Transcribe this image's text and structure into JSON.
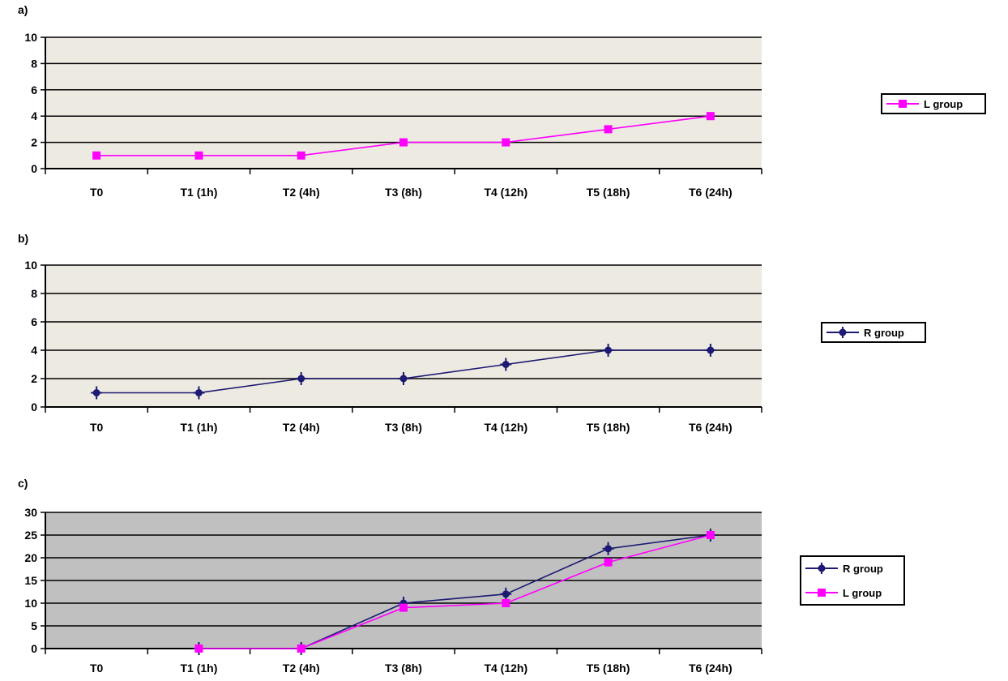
{
  "chart_data": [
    {
      "type": "line",
      "panel_label": "a)",
      "categories": [
        "T0",
        "T1 (1h)",
        "T2 (4h)",
        "T3 (8h)",
        "T4 (12h)",
        "T5 (18h)",
        "T6 (24h)"
      ],
      "yticks": [
        "0",
        "2",
        "4",
        "6",
        "8",
        "10"
      ],
      "ylim": [
        0,
        10
      ],
      "plot_bg": "#edeae1",
      "grid": true,
      "legend_position": "right",
      "series": [
        {
          "name": "L group",
          "color": "#ff00ff",
          "marker": "square",
          "values": [
            1,
            1,
            1,
            2,
            2,
            3,
            4
          ]
        }
      ]
    },
    {
      "type": "line",
      "panel_label": "b)",
      "categories": [
        "T0",
        "T1 (1h)",
        "T2 (4h)",
        "T3 (8h)",
        "T4 (12h)",
        "T5 (18h)",
        "T6 (24h)"
      ],
      "yticks": [
        "0",
        "2",
        "4",
        "6",
        "8",
        "10"
      ],
      "ylim": [
        0,
        10
      ],
      "plot_bg": "#edeae1",
      "grid": true,
      "legend_position": "right",
      "series": [
        {
          "name": "R group",
          "color": "#1c1a73",
          "marker": "star",
          "values": [
            1,
            1,
            2,
            2,
            3,
            4,
            4
          ]
        }
      ]
    },
    {
      "type": "line",
      "panel_label": "c)",
      "categories": [
        "T0",
        "T1 (1h)",
        "T2 (4h)",
        "T3 (8h)",
        "T4 (12h)",
        "T5 (18h)",
        "T6 (24h)"
      ],
      "yticks": [
        "0",
        "5",
        "10",
        "15",
        "20",
        "25",
        "30"
      ],
      "ylim": [
        0,
        30
      ],
      "plot_bg": "#c0c0c0",
      "grid": true,
      "legend_position": "right",
      "series": [
        {
          "name": "R group",
          "color": "#1c1a73",
          "marker": "star",
          "values": [
            null,
            0,
            0,
            10,
            12,
            22,
            25
          ]
        },
        {
          "name": "L group",
          "color": "#ff00ff",
          "marker": "square",
          "values": [
            null,
            0,
            0,
            9,
            10,
            19,
            25
          ]
        }
      ]
    }
  ]
}
